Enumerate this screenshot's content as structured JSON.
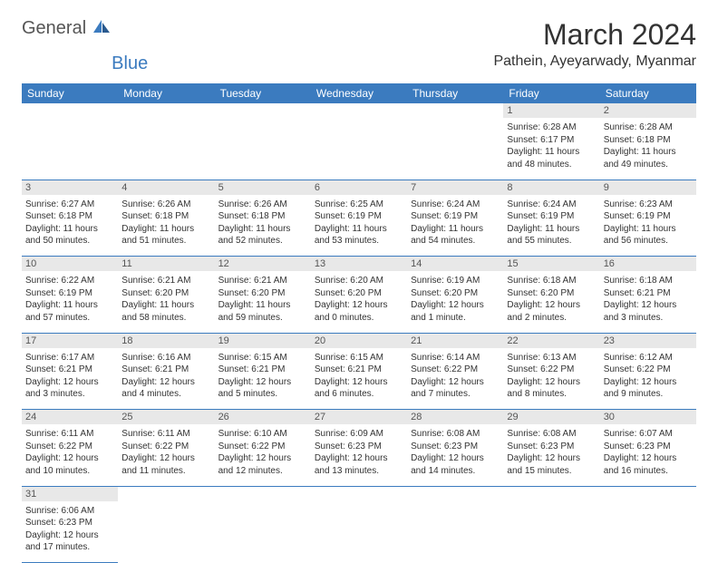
{
  "logo": {
    "text1": "General",
    "text2": "Blue"
  },
  "title": "March 2024",
  "location": "Pathein, Ayeyarwady, Myanmar",
  "colors": {
    "header_bg": "#3b7bbf",
    "header_fg": "#ffffff",
    "daynum_bg": "#e8e8e8",
    "border": "#3b7bbf",
    "text": "#333333",
    "logo_gray": "#555555",
    "logo_blue": "#3b7bbf"
  },
  "day_headers": [
    "Sunday",
    "Monday",
    "Tuesday",
    "Wednesday",
    "Thursday",
    "Friday",
    "Saturday"
  ],
  "weeks": [
    [
      null,
      null,
      null,
      null,
      null,
      {
        "n": "1",
        "sr": "6:28 AM",
        "ss": "6:17 PM",
        "dl": "11 hours and 48 minutes."
      },
      {
        "n": "2",
        "sr": "6:28 AM",
        "ss": "6:18 PM",
        "dl": "11 hours and 49 minutes."
      }
    ],
    [
      {
        "n": "3",
        "sr": "6:27 AM",
        "ss": "6:18 PM",
        "dl": "11 hours and 50 minutes."
      },
      {
        "n": "4",
        "sr": "6:26 AM",
        "ss": "6:18 PM",
        "dl": "11 hours and 51 minutes."
      },
      {
        "n": "5",
        "sr": "6:26 AM",
        "ss": "6:18 PM",
        "dl": "11 hours and 52 minutes."
      },
      {
        "n": "6",
        "sr": "6:25 AM",
        "ss": "6:19 PM",
        "dl": "11 hours and 53 minutes."
      },
      {
        "n": "7",
        "sr": "6:24 AM",
        "ss": "6:19 PM",
        "dl": "11 hours and 54 minutes."
      },
      {
        "n": "8",
        "sr": "6:24 AM",
        "ss": "6:19 PM",
        "dl": "11 hours and 55 minutes."
      },
      {
        "n": "9",
        "sr": "6:23 AM",
        "ss": "6:19 PM",
        "dl": "11 hours and 56 minutes."
      }
    ],
    [
      {
        "n": "10",
        "sr": "6:22 AM",
        "ss": "6:19 PM",
        "dl": "11 hours and 57 minutes."
      },
      {
        "n": "11",
        "sr": "6:21 AM",
        "ss": "6:20 PM",
        "dl": "11 hours and 58 minutes."
      },
      {
        "n": "12",
        "sr": "6:21 AM",
        "ss": "6:20 PM",
        "dl": "11 hours and 59 minutes."
      },
      {
        "n": "13",
        "sr": "6:20 AM",
        "ss": "6:20 PM",
        "dl": "12 hours and 0 minutes."
      },
      {
        "n": "14",
        "sr": "6:19 AM",
        "ss": "6:20 PM",
        "dl": "12 hours and 1 minute."
      },
      {
        "n": "15",
        "sr": "6:18 AM",
        "ss": "6:20 PM",
        "dl": "12 hours and 2 minutes."
      },
      {
        "n": "16",
        "sr": "6:18 AM",
        "ss": "6:21 PM",
        "dl": "12 hours and 3 minutes."
      }
    ],
    [
      {
        "n": "17",
        "sr": "6:17 AM",
        "ss": "6:21 PM",
        "dl": "12 hours and 3 minutes."
      },
      {
        "n": "18",
        "sr": "6:16 AM",
        "ss": "6:21 PM",
        "dl": "12 hours and 4 minutes."
      },
      {
        "n": "19",
        "sr": "6:15 AM",
        "ss": "6:21 PM",
        "dl": "12 hours and 5 minutes."
      },
      {
        "n": "20",
        "sr": "6:15 AM",
        "ss": "6:21 PM",
        "dl": "12 hours and 6 minutes."
      },
      {
        "n": "21",
        "sr": "6:14 AM",
        "ss": "6:22 PM",
        "dl": "12 hours and 7 minutes."
      },
      {
        "n": "22",
        "sr": "6:13 AM",
        "ss": "6:22 PM",
        "dl": "12 hours and 8 minutes."
      },
      {
        "n": "23",
        "sr": "6:12 AM",
        "ss": "6:22 PM",
        "dl": "12 hours and 9 minutes."
      }
    ],
    [
      {
        "n": "24",
        "sr": "6:11 AM",
        "ss": "6:22 PM",
        "dl": "12 hours and 10 minutes."
      },
      {
        "n": "25",
        "sr": "6:11 AM",
        "ss": "6:22 PM",
        "dl": "12 hours and 11 minutes."
      },
      {
        "n": "26",
        "sr": "6:10 AM",
        "ss": "6:22 PM",
        "dl": "12 hours and 12 minutes."
      },
      {
        "n": "27",
        "sr": "6:09 AM",
        "ss": "6:23 PM",
        "dl": "12 hours and 13 minutes."
      },
      {
        "n": "28",
        "sr": "6:08 AM",
        "ss": "6:23 PM",
        "dl": "12 hours and 14 minutes."
      },
      {
        "n": "29",
        "sr": "6:08 AM",
        "ss": "6:23 PM",
        "dl": "12 hours and 15 minutes."
      },
      {
        "n": "30",
        "sr": "6:07 AM",
        "ss": "6:23 PM",
        "dl": "12 hours and 16 minutes."
      }
    ],
    [
      {
        "n": "31",
        "sr": "6:06 AM",
        "ss": "6:23 PM",
        "dl": "12 hours and 17 minutes."
      },
      null,
      null,
      null,
      null,
      null,
      null
    ]
  ],
  "labels": {
    "sunrise": "Sunrise:",
    "sunset": "Sunset:",
    "daylight": "Daylight:"
  }
}
